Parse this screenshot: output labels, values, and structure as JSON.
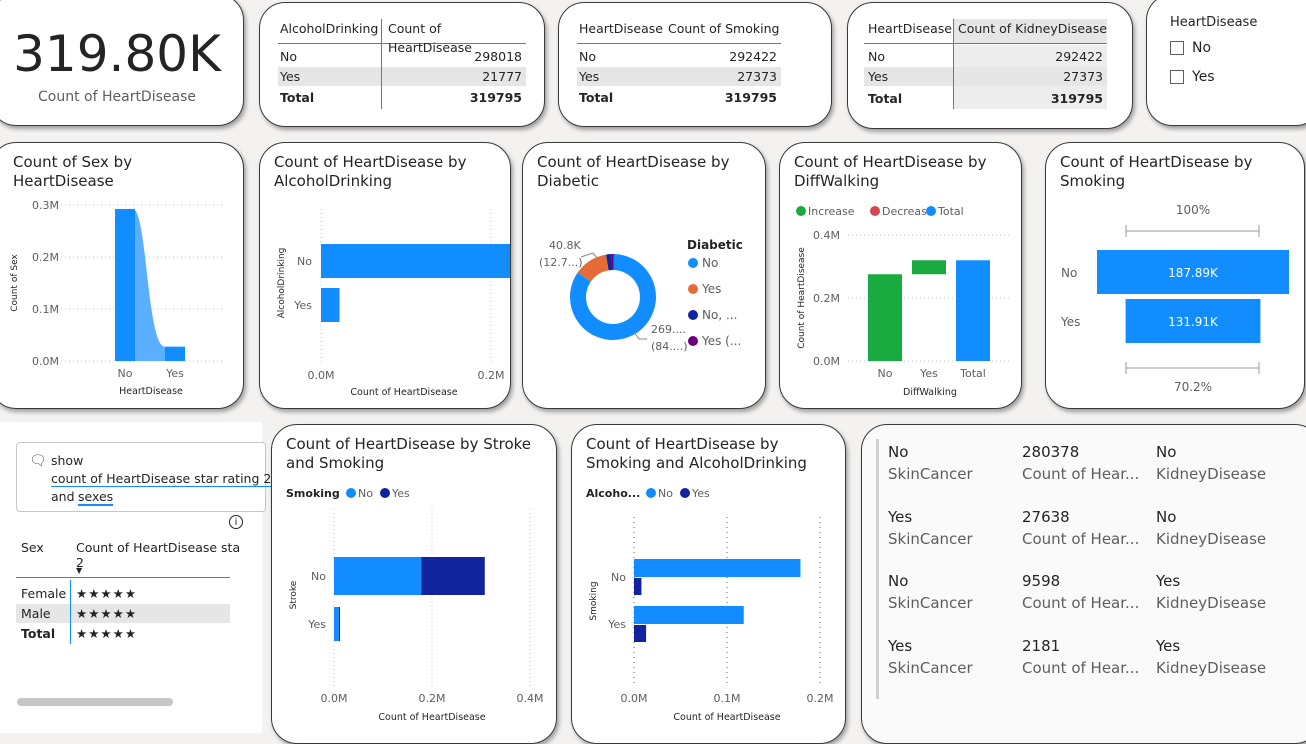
{
  "colors": {
    "blue": "#118dff",
    "navy": "#12239e",
    "orange": "#e66c37",
    "purple": "#6b007b",
    "green": "#1aab40",
    "red": "#d64550",
    "gray": "#605e5c"
  },
  "kpi": {
    "value": "319.80K",
    "label": "Count of HeartDisease"
  },
  "table_alcohol": {
    "headers": [
      "AlcoholDrinking",
      "Count of HeartDisease"
    ],
    "rows": [
      [
        "No",
        "298018"
      ],
      [
        "Yes",
        "21777"
      ]
    ],
    "total": [
      "Total",
      "319795"
    ]
  },
  "table_smoking": {
    "headers": [
      "HeartDisease",
      "Count of Smoking"
    ],
    "rows": [
      [
        "No",
        "292422"
      ],
      [
        "Yes",
        "27373"
      ]
    ],
    "total": [
      "Total",
      "319795"
    ]
  },
  "table_kidney": {
    "headers": [
      "HeartDisease",
      "Count of KidneyDisease"
    ],
    "rows": [
      [
        "No",
        "292422"
      ],
      [
        "Yes",
        "27373"
      ]
    ],
    "total": [
      "Total",
      "319795"
    ]
  },
  "slicer": {
    "title": "HeartDisease",
    "options": [
      "No",
      "Yes"
    ]
  },
  "qa": {
    "show_label": "show",
    "query_line1": "count of HeartDisease star rating 2",
    "query_line2_pre": "and",
    "query_line2_link": "sexes",
    "info_icon": "info-icon",
    "headers": [
      "Sex",
      "Count of HeartDisease sta"
    ],
    "header_sub": "2",
    "rows": [
      [
        "Female",
        "★★★★★"
      ],
      [
        "Male",
        "★★★★★"
      ]
    ],
    "total": [
      "Total",
      "★★★★★"
    ]
  },
  "multirow": {
    "rows": [
      {
        "v1": "No",
        "l1": "SkinCancer",
        "v2": "280378",
        "l2": "Count of Hear...",
        "v3": "No",
        "l3": "KidneyDisease"
      },
      {
        "v1": "Yes",
        "l1": "SkinCancer",
        "v2": "27638",
        "l2": "Count of Hear...",
        "v3": "No",
        "l3": "KidneyDisease"
      },
      {
        "v1": "No",
        "l1": "SkinCancer",
        "v2": "9598",
        "l2": "Count of Hear...",
        "v3": "Yes",
        "l3": "KidneyDisease"
      },
      {
        "v1": "Yes",
        "l1": "SkinCancer",
        "v2": "2181",
        "l2": "Count of Hear...",
        "v3": "Yes",
        "l3": "KidneyDisease"
      }
    ]
  },
  "chart_data": [
    {
      "id": "sex_area",
      "type": "area",
      "title_line1": "Count of Sex by",
      "title_line2": "HeartDisease",
      "categories": [
        "No",
        "Yes"
      ],
      "values": [
        292422,
        27373
      ],
      "xlabel": "HeartDisease",
      "ylabel": "Count of Sex",
      "yticks": [
        "0.0M",
        "0.1M",
        "0.2M",
        "0.3M"
      ],
      "ylim": [
        0,
        300000
      ]
    },
    {
      "id": "alcohol_bar",
      "type": "bar",
      "title_line1": "Count of HeartDisease by",
      "title_line2": "AlcoholDrinking",
      "categories": [
        "No",
        "Yes"
      ],
      "values": [
        298018,
        21777
      ],
      "xlabel": "Count of HeartDisease",
      "ylabel": "AlcoholDrinking",
      "xticks": [
        "0.0M",
        "0.2M"
      ],
      "xlim": [
        0,
        400000
      ]
    },
    {
      "id": "diabetic_donut",
      "type": "pie",
      "title_line1": "Count of HeartDisease by",
      "title_line2": "Diabetic",
      "legend_title": "Diabetic",
      "labels": [
        "No",
        "Yes",
        "No, ...",
        "Yes (..."
      ],
      "values": [
        269653,
        40802,
        6781,
        2559
      ],
      "callout_top_1": "40.8K",
      "callout_top_2": "(12.7...)",
      "callout_bottom_1": "269....",
      "callout_bottom_2": "(84....)"
    },
    {
      "id": "diffwalking_waterfall",
      "type": "bar",
      "title_line1": "Count of HeartDisease by",
      "title_line2": "DiffWalking",
      "legend": [
        "Increase",
        "Decrease",
        "Total"
      ],
      "categories": [
        "No",
        "Yes",
        "Total"
      ],
      "values": [
        275385,
        44410,
        319795
      ],
      "xlabel": "DiffWalking",
      "ylabel": "Count of HeartDisease",
      "yticks": [
        "0.0M",
        "0.2M",
        "0.4M"
      ],
      "ylim": [
        0,
        400000
      ]
    },
    {
      "id": "smoking_funnel",
      "type": "bar",
      "title_line1": "Count of HeartDisease by",
      "title_line2": "Smoking",
      "categories": [
        "No",
        "Yes"
      ],
      "values": [
        187887,
        131908
      ],
      "value_labels": [
        "187.89K",
        "131.91K"
      ],
      "top_label": "100%",
      "bottom_label": "70.2%"
    },
    {
      "id": "stroke_smoking",
      "type": "bar",
      "title_line1": "Count of HeartDisease by Stroke",
      "title_line2": "and Smoking",
      "legend_title": "Smoking",
      "categories": [
        "No",
        "Yes"
      ],
      "series": [
        {
          "name": "No",
          "values": [
            178000,
            9900
          ]
        },
        {
          "name": "Yes",
          "values": [
            129700,
            2200
          ]
        }
      ],
      "xlabel": "Count of HeartDisease",
      "ylabel": "Stroke",
      "xticks": [
        "0.0M",
        "0.2M",
        "0.4M"
      ],
      "xlim": [
        0,
        400000
      ]
    },
    {
      "id": "smoking_alcohol",
      "type": "bar",
      "title_line1": "Count of HeartDisease by",
      "title_line2": "Smoking and AlcoholDrinking",
      "legend_title": "Alcoho...",
      "categories": [
        "No",
        "Yes"
      ],
      "series": [
        {
          "name": "No",
          "values": [
            179000,
            118000
          ]
        },
        {
          "name": "Yes",
          "values": [
            8000,
            13000
          ]
        }
      ],
      "xlabel": "Count of HeartDisease",
      "ylabel": "Smoking",
      "xticks": [
        "0.0M",
        "0.1M",
        "0.2M"
      ],
      "xlim": [
        0,
        200000
      ]
    }
  ]
}
